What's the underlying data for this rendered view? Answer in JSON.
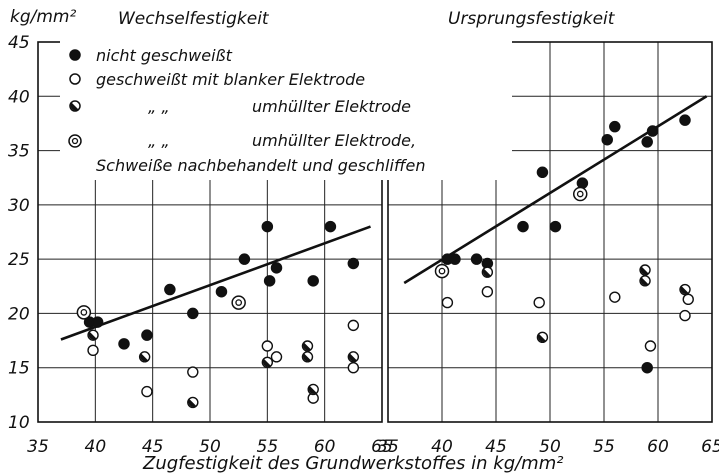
{
  "y_unit": "kg/mm²",
  "legend": [
    {
      "marker": "filled",
      "label": "nicht geschweißt"
    },
    {
      "marker": "open",
      "label": "geschweißt mit blanker Elektrode"
    },
    {
      "marker": "half",
      "ditto": "„        „",
      "label": "umhüllter Elektrode"
    },
    {
      "marker": "ring",
      "ditto": "„        „",
      "label": "umhüllter Elektrode,"
    },
    {
      "marker": "none",
      "label": "Schweiße nachbehandelt und geschliffen"
    }
  ],
  "chart_data": [
    {
      "type": "scatter",
      "title": "Wechselfestigkeit",
      "xlabel": "Zugfestigkeit des Grundwerkstoffes in kg/mm²",
      "ylabel": "kg/mm²",
      "xlim": [
        35,
        65
      ],
      "ylim": [
        10,
        45
      ],
      "x_ticks": [
        35,
        40,
        45,
        50,
        55,
        60,
        65
      ],
      "y_ticks": [
        10,
        15,
        20,
        25,
        30,
        35,
        40,
        45
      ],
      "y_tick_labels": [
        "10",
        "15",
        "20",
        "25",
        "30",
        "35",
        "40",
        "45"
      ],
      "grid": true,
      "legend_position": "top-left",
      "series": [
        {
          "name": "nicht geschweißt",
          "marker": "filled",
          "points": [
            [
              39.5,
              19.2
            ],
            [
              40.2,
              19.2
            ],
            [
              42.5,
              17.2
            ],
            [
              44.5,
              18.0
            ],
            [
              46.5,
              22.2
            ],
            [
              48.5,
              20.0
            ],
            [
              51,
              22.0
            ],
            [
              53,
              25.0
            ],
            [
              55,
              28.0
            ],
            [
              55.2,
              23.0
            ],
            [
              55.8,
              24.2
            ],
            [
              59,
              23.0
            ],
            [
              60.5,
              28.0
            ],
            [
              62.5,
              24.6
            ]
          ]
        },
        {
          "name": "geschweißt mit blanker Elektrode",
          "marker": "open",
          "points": [
            [
              39.8,
              16.6
            ],
            [
              44.5,
              12.8
            ],
            [
              48.5,
              14.6
            ],
            [
              55,
              17.0
            ],
            [
              55.8,
              16.0
            ],
            [
              59,
              12.2
            ],
            [
              62.5,
              18.9
            ],
            [
              62.5,
              15.0
            ]
          ]
        },
        {
          "name": "umhüllter Elektrode",
          "marker": "half",
          "points": [
            [
              39.8,
              18.0
            ],
            [
              44.3,
              16.0
            ],
            [
              48.5,
              11.8
            ],
            [
              55,
              15.5
            ],
            [
              58.5,
              17.0
            ],
            [
              58.5,
              16.0
            ],
            [
              59,
              13.0
            ],
            [
              62.5,
              16.0
            ]
          ]
        },
        {
          "name": "umhüllter Elektrode, Schweiße nachbehandelt und geschliffen",
          "marker": "ring",
          "points": [
            [
              39,
              20.1
            ],
            [
              52.5,
              21.0
            ]
          ]
        }
      ],
      "trend_line": [
        [
          37,
          17.6
        ],
        [
          64,
          28.0
        ]
      ]
    },
    {
      "type": "scatter",
      "title": "Ursprungsfestigkeit",
      "xlabel": "",
      "ylabel": "",
      "xlim": [
        35,
        65
      ],
      "ylim": [
        10,
        45
      ],
      "x_ticks": [
        35,
        40,
        45,
        50,
        55,
        60,
        65
      ],
      "grid": true,
      "series": [
        {
          "name": "nicht geschweißt",
          "marker": "filled",
          "points": [
            [
              40.5,
              25.0
            ],
            [
              41.2,
              25.0
            ],
            [
              43.2,
              25.0
            ],
            [
              44.2,
              24.6
            ],
            [
              47.5,
              28.0
            ],
            [
              50.5,
              28.0
            ],
            [
              49.3,
              33.0
            ],
            [
              53,
              32.0
            ],
            [
              55.3,
              36.0
            ],
            [
              56,
              37.2
            ],
            [
              59,
              35.8
            ],
            [
              59.5,
              36.8
            ],
            [
              62.5,
              37.8
            ],
            [
              59,
              15.0
            ]
          ]
        },
        {
          "name": "geschweißt mit blanker Elektrode",
          "marker": "open",
          "points": [
            [
              40.5,
              21.0
            ],
            [
              44.2,
              22.0
            ],
            [
              49,
              21.0
            ],
            [
              56,
              21.5
            ],
            [
              59.3,
              17.0
            ],
            [
              62.5,
              19.8
            ],
            [
              62.8,
              21.3
            ]
          ]
        },
        {
          "name": "umhüllter Elektrode",
          "marker": "half",
          "points": [
            [
              44.2,
              23.8
            ],
            [
              49.3,
              17.8
            ],
            [
              58.8,
              24.0
            ],
            [
              58.8,
              23.0
            ],
            [
              62.5,
              22.2
            ]
          ]
        },
        {
          "name": "umhüllter Elektrode, Schweiße nachbehandelt und geschliffen",
          "marker": "ring",
          "points": [
            [
              40,
              23.9
            ],
            [
              52.8,
              31.0
            ]
          ]
        }
      ],
      "trend_line": [
        [
          36.5,
          22.8
        ],
        [
          64.5,
          40.0
        ]
      ]
    }
  ]
}
